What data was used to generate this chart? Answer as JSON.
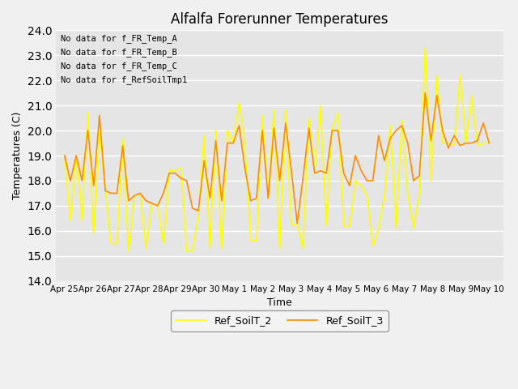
{
  "title": "Alfalfa Forerunner Temperatures",
  "ylabel": "Temperatures (C)",
  "xlabel": "Time",
  "ylim": [
    14.0,
    24.0
  ],
  "yticks": [
    14.0,
    15.0,
    16.0,
    17.0,
    18.0,
    19.0,
    20.0,
    21.0,
    22.0,
    23.0,
    24.0
  ],
  "fig_facecolor": "#f0f0f0",
  "ax_facecolor": "#e5e5e5",
  "no_data_texts": [
    "No data for f_FR_Temp_A",
    "No data for f_FR_Temp_B",
    "No data for f_FR_Temp_C",
    "No data for f_RefSoilTmp1"
  ],
  "legend_entries": [
    "Ref_SoilT_3",
    "Ref_SoilT_2"
  ],
  "legend_colors": [
    "#FF8C00",
    "#FFFF00"
  ],
  "xtick_labels": [
    "Apr 25",
    "Apr 26",
    "Apr 27",
    "Apr 28",
    "Apr 29",
    "Apr 30",
    "May 1",
    "May 2",
    "May 3",
    "May 4",
    "May 5",
    "May 6",
    "May 7",
    "May 8",
    "May 9",
    "May 10"
  ],
  "ref_soilt3": [
    19.0,
    18.0,
    19.0,
    18.0,
    20.0,
    17.8,
    20.6,
    17.6,
    17.5,
    17.5,
    19.4,
    17.2,
    17.4,
    17.5,
    17.2,
    17.1,
    17.0,
    17.5,
    18.3,
    18.3,
    18.1,
    18.0,
    16.9,
    16.8,
    18.8,
    17.3,
    19.6,
    17.2,
    19.5,
    19.5,
    20.2,
    18.5,
    17.2,
    17.3,
    20.0,
    17.3,
    20.1,
    18.0,
    20.3,
    18.4,
    16.3,
    18.1,
    20.1,
    18.3,
    18.4,
    18.3,
    20.0,
    20.0,
    18.3,
    17.8,
    19.0,
    18.4,
    18.0,
    18.0,
    19.8,
    18.8,
    19.7,
    20.0,
    20.2,
    19.5,
    18.0,
    18.2,
    21.5,
    19.6,
    21.4,
    20.0,
    19.3,
    19.8,
    19.4,
    19.5,
    19.5,
    19.6,
    20.3,
    19.5
  ],
  "ref_soilt2": [
    19.0,
    16.4,
    19.0,
    16.4,
    20.7,
    15.9,
    20.0,
    17.6,
    15.5,
    15.5,
    19.7,
    15.2,
    17.4,
    17.5,
    15.3,
    17.1,
    17.0,
    15.5,
    18.4,
    18.4,
    18.5,
    15.2,
    15.2,
    16.6,
    19.8,
    15.3,
    20.0,
    15.3,
    20.0,
    19.5,
    21.1,
    19.5,
    15.6,
    15.6,
    20.6,
    17.3,
    20.8,
    15.3,
    20.8,
    16.2,
    16.3,
    15.3,
    20.5,
    18.4,
    21.0,
    16.2,
    20.1,
    20.7,
    16.2,
    16.2,
    18.0,
    17.8,
    17.4,
    15.4,
    16.1,
    17.4,
    20.2,
    16.1,
    20.4,
    17.5,
    16.1,
    17.5,
    23.3,
    18.0,
    22.2,
    19.5,
    19.5,
    19.4,
    22.2,
    19.5,
    21.4,
    19.4,
    19.5,
    19.5
  ]
}
